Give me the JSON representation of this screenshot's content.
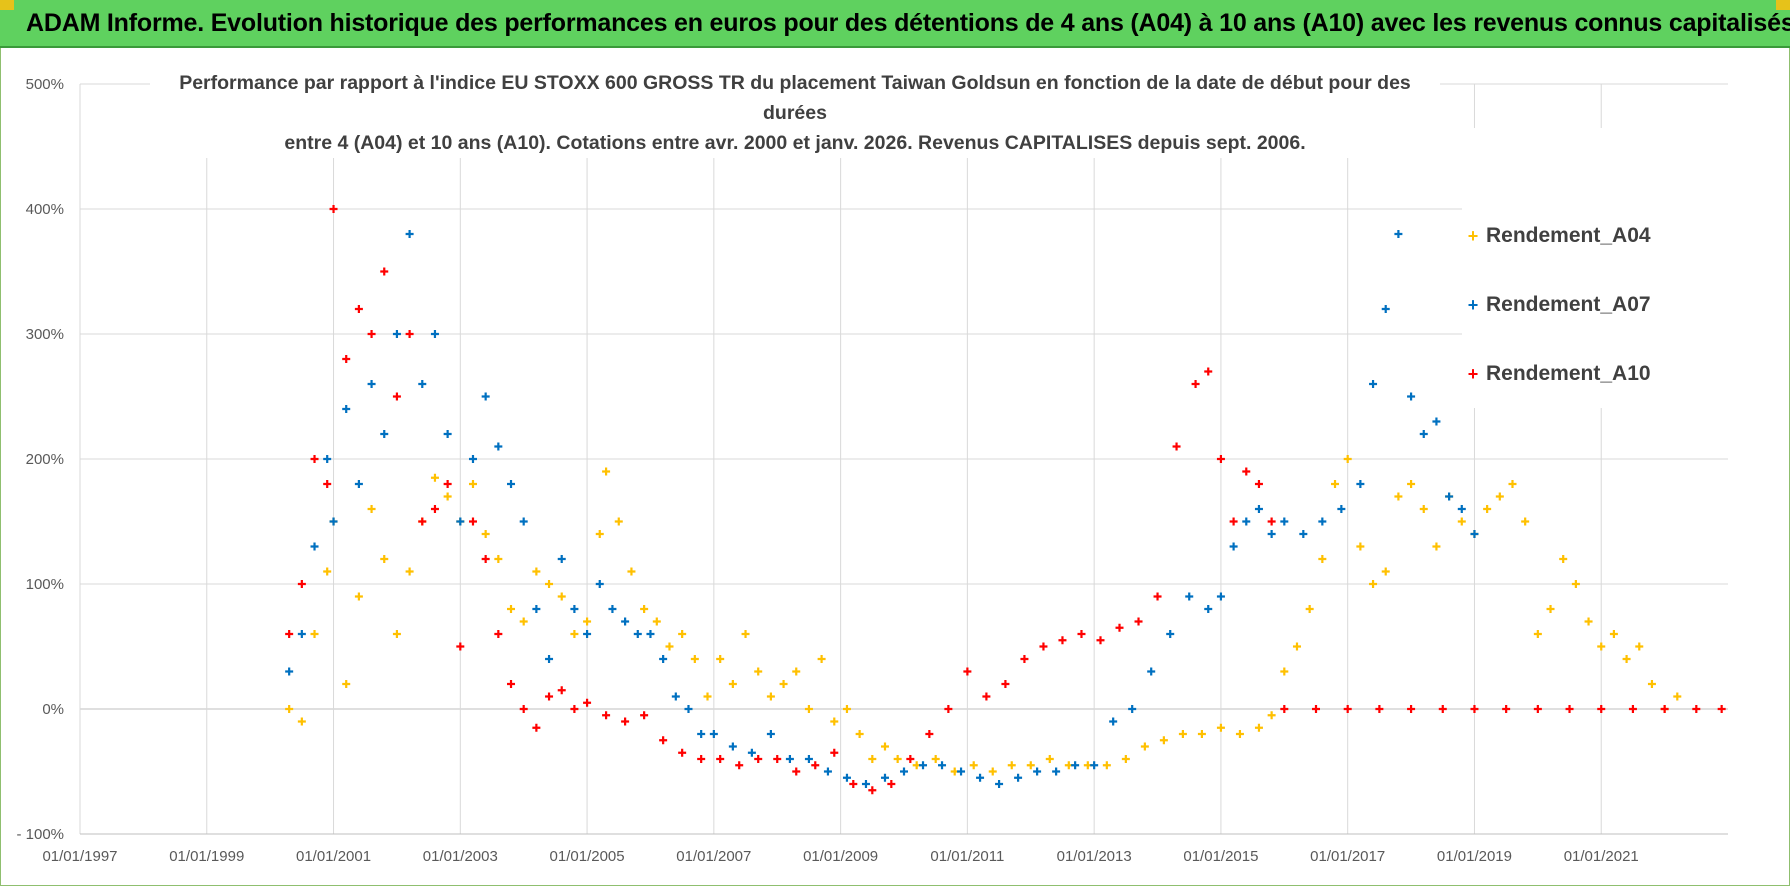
{
  "banner": {
    "title": "ADAM Informe. Evolution historique des performances en euros pour des détentions de 4 ans (A04) à 10 ans (A10) avec les revenus connus capitalisés"
  },
  "colors": {
    "banner_bg": "#5fd15f",
    "a04": "#ffc000",
    "a07": "#0070c0",
    "a10": "#ff0000",
    "grid": "#d9d9d9"
  },
  "chart_data": {
    "type": "scatter",
    "title_line1": "Performance par rapport à l'indice EU STOXX 600 GROSS TR  du placement Taiwan Goldsun  en fonction de la date de début pour des durées",
    "title_line2": "entre 4 (A04) et 10 ans (A10). Cotations entre avr. 2000 et janv. 2026. Revenus CAPITALISES depuis sept. 2006.",
    "xlabel": "",
    "ylabel": "",
    "xlim": [
      1997.0,
      2023.0
    ],
    "ylim": [
      -100,
      500
    ],
    "y_ticks": [
      500,
      400,
      300,
      200,
      100,
      0,
      -100
    ],
    "y_tick_labels": [
      "500%",
      "400%",
      "300%",
      "200%",
      "100%",
      "0%",
      "- 100%"
    ],
    "x_ticks": [
      1997,
      1999,
      2001,
      2003,
      2005,
      2007,
      2009,
      2011,
      2013,
      2015,
      2017,
      2019,
      2021
    ],
    "x_tick_labels": [
      "01/01/1997",
      "01/01/1999",
      "01/01/2001",
      "01/01/2003",
      "01/01/2005",
      "01/01/2007",
      "01/01/2009",
      "01/01/2011",
      "01/01/2013",
      "01/01/2015",
      "01/01/2017",
      "01/01/2019",
      "01/01/2021"
    ],
    "legend_position": "top-right",
    "series": [
      {
        "name": "Rendement_A04",
        "x": [
          2000.3,
          2000.5,
          2000.7,
          2000.9,
          2001.0,
          2001.2,
          2001.4,
          2001.6,
          2001.8,
          2002.0,
          2002.2,
          2002.4,
          2002.6,
          2002.8,
          2003.0,
          2003.2,
          2003.4,
          2003.6,
          2003.8,
          2004.0,
          2004.2,
          2004.4,
          2004.6,
          2004.8,
          2005.0,
          2005.2,
          2005.3,
          2005.5,
          2005.7,
          2005.9,
          2006.1,
          2006.3,
          2006.5,
          2006.7,
          2006.9,
          2007.1,
          2007.3,
          2007.5,
          2007.7,
          2007.9,
          2008.1,
          2008.3,
          2008.5,
          2008.7,
          2008.9,
          2009.1,
          2009.3,
          2009.5,
          2009.7,
          2009.9,
          2010.2,
          2010.5,
          2010.8,
          2011.1,
          2011.4,
          2011.7,
          2012.0,
          2012.3,
          2012.6,
          2012.9,
          2013.2,
          2013.5,
          2013.8,
          2014.1,
          2014.4,
          2014.7,
          2015.0,
          2015.3,
          2015.6,
          2015.8,
          2016.0,
          2016.2,
          2016.4,
          2016.6,
          2016.8,
          2017.0,
          2017.2,
          2017.4,
          2017.6,
          2017.8,
          2018.0,
          2018.2,
          2018.4,
          2018.6,
          2018.8,
          2019.0,
          2019.2,
          2019.4,
          2019.6,
          2019.8,
          2020.0,
          2020.2,
          2020.4,
          2020.6,
          2020.8,
          2021.0,
          2021.2,
          2021.4,
          2021.6,
          2021.8,
          2022.0,
          2022.2
        ],
        "values": [
          0,
          -10,
          60,
          110,
          150,
          20,
          90,
          160,
          120,
          60,
          110,
          150,
          185,
          170,
          150,
          180,
          140,
          120,
          80,
          70,
          110,
          100,
          90,
          60,
          70,
          140,
          190,
          150,
          110,
          80,
          70,
          50,
          60,
          40,
          10,
          40,
          20,
          60,
          30,
          10,
          20,
          30,
          0,
          40,
          -10,
          0,
          -20,
          -40,
          -30,
          -40,
          -45,
          -40,
          -50,
          -45,
          -50,
          -45,
          -45,
          -40,
          -45,
          -45,
          -45,
          -40,
          -30,
          -25,
          -20,
          -20,
          -15,
          -20,
          -15,
          -5,
          30,
          50,
          80,
          120,
          180,
          200,
          130,
          100,
          110,
          170,
          180,
          160,
          130,
          170,
          150,
          140,
          160,
          170,
          180,
          150,
          60,
          80,
          120,
          100,
          70,
          50,
          60,
          40,
          50,
          20,
          0,
          10
        ]
      },
      {
        "name": "Rendement_A07",
        "x": [
          2000.3,
          2000.5,
          2000.7,
          2000.9,
          2001.0,
          2001.2,
          2001.4,
          2001.6,
          2001.8,
          2002.0,
          2002.2,
          2002.4,
          2002.6,
          2002.8,
          2003.0,
          2003.2,
          2003.4,
          2003.6,
          2003.8,
          2004.0,
          2004.2,
          2004.4,
          2004.6,
          2004.8,
          2005.0,
          2005.2,
          2005.4,
          2005.6,
          2005.8,
          2006.0,
          2006.2,
          2006.4,
          2006.6,
          2006.8,
          2007.0,
          2007.3,
          2007.6,
          2007.9,
          2008.2,
          2008.5,
          2008.8,
          2009.1,
          2009.4,
          2009.7,
          2010.0,
          2010.3,
          2010.6,
          2010.9,
          2011.2,
          2011.5,
          2011.8,
          2012.1,
          2012.4,
          2012.7,
          2013.0,
          2013.3,
          2013.6,
          2013.9,
          2014.2,
          2014.5,
          2014.8,
          2015.0,
          2015.2,
          2015.4,
          2015.6,
          2015.8,
          2016.0,
          2016.3,
          2016.6,
          2016.9,
          2017.2,
          2017.4,
          2017.6,
          2017.8,
          2018.0,
          2018.2,
          2018.4,
          2018.6,
          2018.8,
          2019.0
        ],
        "values": [
          30,
          60,
          130,
          200,
          150,
          240,
          180,
          260,
          220,
          300,
          380,
          260,
          300,
          220,
          150,
          200,
          250,
          210,
          180,
          150,
          80,
          40,
          120,
          80,
          60,
          100,
          80,
          70,
          60,
          60,
          40,
          10,
          0,
          -20,
          -20,
          -30,
          -35,
          -20,
          -40,
          -40,
          -50,
          -55,
          -60,
          -55,
          -50,
          -45,
          -45,
          -50,
          -55,
          -60,
          -55,
          -50,
          -50,
          -45,
          -45,
          -10,
          0,
          30,
          60,
          90,
          80,
          90,
          130,
          150,
          160,
          140,
          150,
          140,
          150,
          160,
          180,
          260,
          320,
          380,
          250,
          220,
          230,
          170,
          160,
          140
        ]
      },
      {
        "name": "Rendement_A10",
        "x": [
          2000.3,
          2000.5,
          2000.7,
          2000.9,
          2001.0,
          2001.2,
          2001.4,
          2001.6,
          2001.8,
          2002.0,
          2002.2,
          2002.4,
          2002.6,
          2002.8,
          2003.0,
          2003.2,
          2003.4,
          2003.6,
          2003.8,
          2004.0,
          2004.2,
          2004.4,
          2004.6,
          2004.8,
          2005.0,
          2005.3,
          2005.6,
          2005.9,
          2006.2,
          2006.5,
          2006.8,
          2007.1,
          2007.4,
          2007.7,
          2008.0,
          2008.3,
          2008.6,
          2008.9,
          2009.2,
          2009.5,
          2009.8,
          2010.1,
          2010.4,
          2010.7,
          2011.0,
          2011.3,
          2011.6,
          2011.9,
          2012.2,
          2012.5,
          2012.8,
          2013.1,
          2013.4,
          2013.7,
          2014.0,
          2014.3,
          2014.6,
          2014.8,
          2015.0,
          2015.2,
          2015.4,
          2015.6,
          2015.8,
          2016.0,
          2016.5,
          2017.0,
          2017.5,
          2018.0,
          2018.5,
          2019.0,
          2019.5,
          2020.0,
          2020.5,
          2021.0,
          2021.5,
          2022.0,
          2022.5,
          2022.9
        ],
        "values": [
          60,
          100,
          200,
          180,
          400,
          280,
          320,
          300,
          350,
          250,
          300,
          150,
          160,
          180,
          50,
          150,
          120,
          60,
          20,
          0,
          -15,
          10,
          15,
          0,
          5,
          -5,
          -10,
          -5,
          -25,
          -35,
          -40,
          -40,
          -45,
          -40,
          -40,
          -50,
          -45,
          -35,
          -60,
          -65,
          -60,
          -40,
          -20,
          0,
          30,
          10,
          20,
          40,
          50,
          55,
          60,
          55,
          65,
          70,
          90,
          210,
          260,
          270,
          200,
          150,
          190,
          180,
          150,
          0,
          0,
          0,
          0,
          0,
          0,
          0,
          0,
          0,
          0,
          0,
          0,
          0,
          0,
          0
        ]
      }
    ]
  }
}
